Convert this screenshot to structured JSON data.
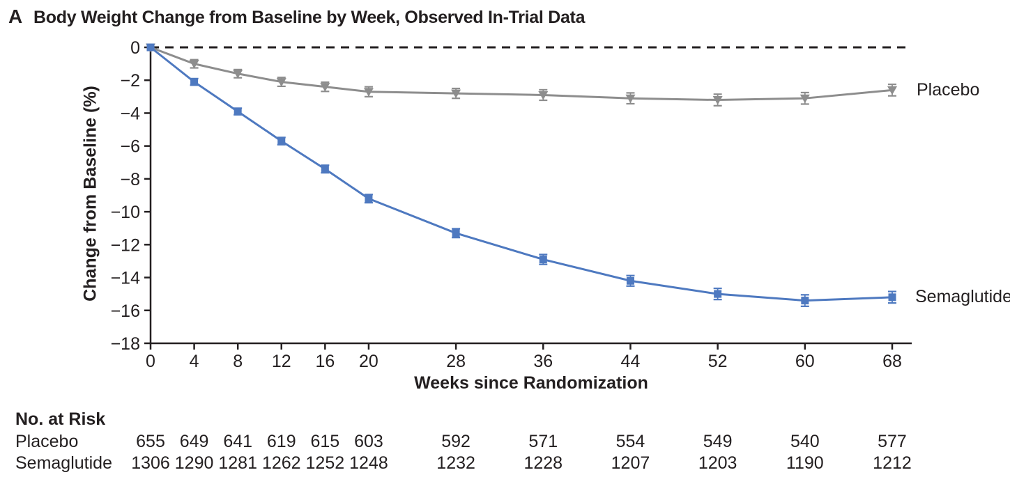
{
  "panel": {
    "letter": "A",
    "title": "Body Weight Change from Baseline by Week, Observed In-Trial Data"
  },
  "chart_data": {
    "type": "line",
    "title": "Body Weight Change from Baseline by Week, Observed In-Trial Data",
    "xlabel": "Weeks since Randomization",
    "ylabel": "Change from Baseline (%)",
    "x": [
      0,
      4,
      8,
      12,
      16,
      20,
      28,
      36,
      44,
      52,
      60,
      68
    ],
    "yticks": [
      0,
      -2,
      -4,
      -6,
      -8,
      -10,
      -12,
      -14,
      -16,
      -18
    ],
    "ylim": [
      -18,
      0
    ],
    "xlim": [
      0,
      70
    ],
    "grid": false,
    "zero_reference_line": "dashed-black",
    "legend_position": "end-of-line-labels",
    "axis_color": "#231f20",
    "series": [
      {
        "name": "Placebo",
        "color": "#8d8d8d",
        "marker": "triangle-down",
        "values": [
          0,
          -1.0,
          -1.6,
          -2.1,
          -2.4,
          -2.7,
          -2.8,
          -2.9,
          -3.1,
          -3.2,
          -3.1,
          -2.6
        ],
        "errors": [
          0,
          0.25,
          0.25,
          0.27,
          0.28,
          0.3,
          0.3,
          0.32,
          0.33,
          0.35,
          0.35,
          0.35
        ]
      },
      {
        "name": "Semaglutide",
        "color": "#4e79c0",
        "marker": "square",
        "values": [
          0,
          -2.1,
          -3.9,
          -5.7,
          -7.4,
          -9.2,
          -11.3,
          -12.9,
          -14.2,
          -15.0,
          -15.4,
          -15.2
        ],
        "errors": [
          0,
          0.2,
          0.2,
          0.22,
          0.23,
          0.25,
          0.27,
          0.3,
          0.32,
          0.34,
          0.35,
          0.35
        ]
      }
    ]
  },
  "at_risk": {
    "header": "No. at Risk",
    "rows": [
      {
        "label": "Placebo",
        "values": [
          655,
          649,
          641,
          619,
          615,
          603,
          592,
          571,
          554,
          549,
          540,
          577
        ]
      },
      {
        "label": "Semaglutide",
        "values": [
          1306,
          1290,
          1281,
          1262,
          1252,
          1248,
          1232,
          1228,
          1207,
          1203,
          1190,
          1212
        ]
      }
    ]
  }
}
